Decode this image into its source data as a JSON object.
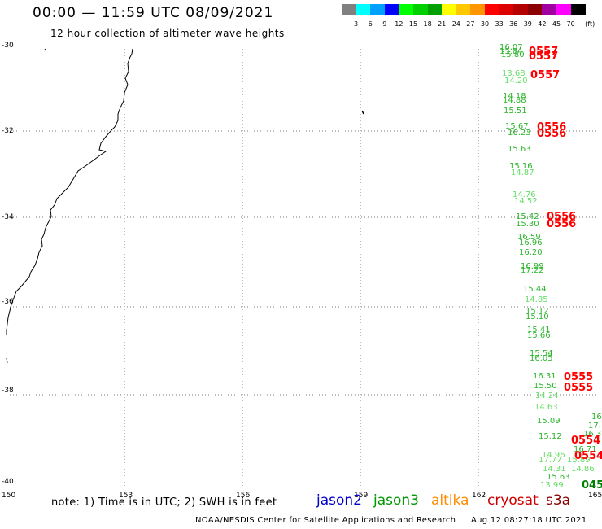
{
  "header": {
    "title": "00:00 — 11:59 UTC 08/09/2021",
    "subtitle": "12 hour collection of altimeter wave heights"
  },
  "legend": {
    "unit": "(ft)",
    "items": [
      {
        "label": "",
        "color": "#808080"
      },
      {
        "label": "3",
        "color": "#00ffff"
      },
      {
        "label": "6",
        "color": "#00a0ff"
      },
      {
        "label": "9",
        "color": "#0000ff"
      },
      {
        "label": "12",
        "color": "#00ff00"
      },
      {
        "label": "15",
        "color": "#00d000"
      },
      {
        "label": "18",
        "color": "#00a000"
      },
      {
        "label": "21",
        "color": "#ffff00"
      },
      {
        "label": "24",
        "color": "#ffc800"
      },
      {
        "label": "27",
        "color": "#ff9600"
      },
      {
        "label": "30",
        "color": "#ff0000"
      },
      {
        "label": "33",
        "color": "#dc0000"
      },
      {
        "label": "36",
        "color": "#b40000"
      },
      {
        "label": "39",
        "color": "#8c0000"
      },
      {
        "label": "42",
        "color": "#a000a0"
      },
      {
        "label": "45",
        "color": "#ff00ff"
      },
      {
        "label": "70",
        "color": "#000000"
      }
    ]
  },
  "map": {
    "lat_labels": [
      "-30",
      "-32",
      "-34",
      "-36",
      "-38",
      "-40"
    ],
    "lon_labels": [
      "150",
      "153",
      "156",
      "159",
      "162",
      "165"
    ]
  },
  "observations": [
    {
      "text": "16.07",
      "color": "#2bb52b",
      "kind": "swh"
    },
    {
      "text": "15.84",
      "color": "#2bb52b",
      "kind": "swh"
    },
    {
      "text": "15.80",
      "color": "#2bb52b",
      "kind": "swh"
    },
    {
      "text": "0557",
      "color": "#ff0000",
      "kind": "time"
    },
    {
      "text": "0557",
      "color": "#ff0000",
      "kind": "time"
    },
    {
      "text": "13.68",
      "color": "#66dd66",
      "kind": "swh"
    },
    {
      "text": "14.20",
      "color": "#66dd66",
      "kind": "swh"
    },
    {
      "text": "0557",
      "color": "#ff0000",
      "kind": "time"
    },
    {
      "text": "14.18",
      "color": "#2bb52b",
      "kind": "swh"
    },
    {
      "text": "14.88",
      "color": "#2bb52b",
      "kind": "swh"
    },
    {
      "text": "15.51",
      "color": "#2bb52b",
      "kind": "swh"
    },
    {
      "text": "15.67",
      "color": "#2bb52b",
      "kind": "swh"
    },
    {
      "text": "16.23",
      "color": "#2bb52b",
      "kind": "swh"
    },
    {
      "text": "0556",
      "color": "#ff0000",
      "kind": "time"
    },
    {
      "text": "0556",
      "color": "#ff0000",
      "kind": "time"
    },
    {
      "text": "15.63",
      "color": "#2bb52b",
      "kind": "swh"
    },
    {
      "text": "15.16",
      "color": "#2bb52b",
      "kind": "swh"
    },
    {
      "text": "14.87",
      "color": "#66dd66",
      "kind": "swh"
    },
    {
      "text": "14.76",
      "color": "#66dd66",
      "kind": "swh"
    },
    {
      "text": "14.52",
      "color": "#66dd66",
      "kind": "swh"
    },
    {
      "text": "15.42",
      "color": "#2bb52b",
      "kind": "swh"
    },
    {
      "text": "15.30",
      "color": "#2bb52b",
      "kind": "swh"
    },
    {
      "text": "0556",
      "color": "#ff0000",
      "kind": "time"
    },
    {
      "text": "0556",
      "color": "#ff0000",
      "kind": "time"
    },
    {
      "text": "16.59",
      "color": "#2bb52b",
      "kind": "swh"
    },
    {
      "text": "16.96",
      "color": "#2bb52b",
      "kind": "swh"
    },
    {
      "text": "16.20",
      "color": "#2bb52b",
      "kind": "swh"
    },
    {
      "text": "16.99",
      "color": "#2bb52b",
      "kind": "swh"
    },
    {
      "text": "17.22",
      "color": "#2bb52b",
      "kind": "swh"
    },
    {
      "text": "15.44",
      "color": "#2bb52b",
      "kind": "swh"
    },
    {
      "text": "14.85",
      "color": "#66dd66",
      "kind": "swh"
    },
    {
      "text": "15.12",
      "color": "#2bb52b",
      "kind": "swh"
    },
    {
      "text": "15.10",
      "color": "#2bb52b",
      "kind": "swh"
    },
    {
      "text": "15.41",
      "color": "#2bb52b",
      "kind": "swh"
    },
    {
      "text": "15.66",
      "color": "#2bb52b",
      "kind": "swh"
    },
    {
      "text": "15.54",
      "color": "#2bb52b",
      "kind": "swh"
    },
    {
      "text": "16.05",
      "color": "#2bb52b",
      "kind": "swh"
    },
    {
      "text": "16.31",
      "color": "#2bb52b",
      "kind": "swh"
    },
    {
      "text": "0555",
      "color": "#ff0000",
      "kind": "time"
    },
    {
      "text": "15.50",
      "color": "#2bb52b",
      "kind": "swh"
    },
    {
      "text": "0555",
      "color": "#ff0000",
      "kind": "time"
    },
    {
      "text": "14.24",
      "color": "#66dd66",
      "kind": "swh"
    },
    {
      "text": "14.63",
      "color": "#66dd66",
      "kind": "swh"
    },
    {
      "text": "15.09",
      "color": "#2bb52b",
      "kind": "swh"
    },
    {
      "text": "16",
      "color": "#2bb52b",
      "kind": "swh"
    },
    {
      "text": "17.",
      "color": "#2bb52b",
      "kind": "swh"
    },
    {
      "text": "15.12",
      "color": "#2bb52b",
      "kind": "swh"
    },
    {
      "text": "16.3",
      "color": "#2bb52b",
      "kind": "swh"
    },
    {
      "text": "0554",
      "color": "#ff0000",
      "kind": "time"
    },
    {
      "text": "16.71",
      "color": "#2bb52b",
      "kind": "swh"
    },
    {
      "text": "14.96",
      "color": "#66dd66",
      "kind": "swh"
    },
    {
      "text": "17.77",
      "color": "#66dd66",
      "kind": "swh"
    },
    {
      "text": "15.89",
      "color": "#66dd66",
      "kind": "swh"
    },
    {
      "text": "0554",
      "color": "#ff0000",
      "kind": "time"
    },
    {
      "text": "14.31",
      "color": "#66dd66",
      "kind": "swh"
    },
    {
      "text": "14.86",
      "color": "#66dd66",
      "kind": "swh"
    },
    {
      "text": "15.63",
      "color": "#2bb52b",
      "kind": "swh"
    },
    {
      "text": "13.99",
      "color": "#66dd66",
      "kind": "swh"
    },
    {
      "text": "045",
      "color": "#008000",
      "kind": "time"
    }
  ],
  "footer": {
    "note": "note: 1) Time is in UTC; 2) SWH is in feet",
    "satellites": [
      {
        "name": "jason2",
        "color": "#0000cc"
      },
      {
        "name": "jason3",
        "color": "#009900"
      },
      {
        "name": "altika",
        "color": "#ff8c00"
      },
      {
        "name": "cryosat",
        "color": "#cc0000"
      },
      {
        "name": "s3a",
        "color": "#8b0000"
      }
    ],
    "credit": "NOAA/NESDIS Center for Satellite Applications and Research",
    "timestamp": "Aug 12 08:27:18 UTC 2021"
  }
}
